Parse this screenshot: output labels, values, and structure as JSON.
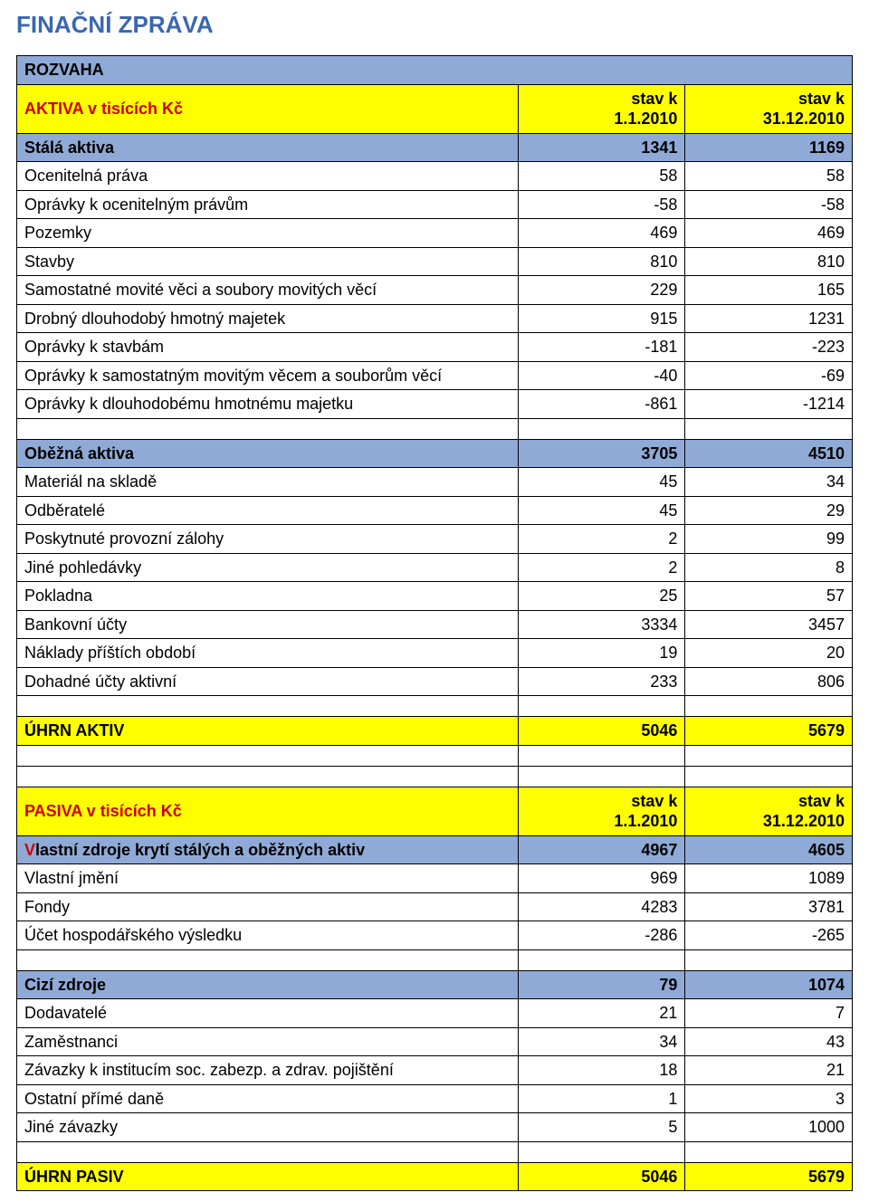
{
  "title": "FINAČNÍ ZPRÁVA",
  "colors": {
    "title": "#3a66b0",
    "header_blue": "#8faad6",
    "highlight_yellow": "#ffff00",
    "accent_red": "#cc0000",
    "border": "#000000",
    "background": "#ffffff"
  },
  "table": {
    "section_title": "ROZVAHA",
    "col1_header_line1": "stav k",
    "col1_header_line2": "1.1.2010",
    "col2_header_line1": "stav k",
    "col2_header_line2": "31.12.2010",
    "aktiva": {
      "header_label": "AKTIVA v tisících Kč",
      "stala": {
        "label": "Stálá aktiva",
        "v1": "1341",
        "v2": "1169"
      },
      "rows1": [
        {
          "label": "Ocenitelná práva",
          "v1": "58",
          "v2": "58"
        },
        {
          "label": "Oprávky k ocenitelným právům",
          "v1": "-58",
          "v2": "-58"
        },
        {
          "label": "Pozemky",
          "v1": "469",
          "v2": "469"
        },
        {
          "label": "Stavby",
          "v1": "810",
          "v2": "810"
        },
        {
          "label": "Samostatné movité věci a soubory movitých věcí",
          "v1": "229",
          "v2": "165"
        },
        {
          "label": "Drobný dlouhodobý hmotný majetek",
          "v1": "915",
          "v2": "1231"
        },
        {
          "label": "Oprávky k stavbám",
          "v1": "-181",
          "v2": "-223"
        },
        {
          "label": "Oprávky k samostatným movitým věcem a souborům věcí",
          "v1": "-40",
          "v2": "-69"
        },
        {
          "label": "Oprávky k dlouhodobému hmotnému majetku",
          "v1": "-861",
          "v2": "-1214"
        }
      ],
      "obezna": {
        "label": "Oběžná aktiva",
        "v1": "3705",
        "v2": "4510"
      },
      "rows2": [
        {
          "label": "Materiál na skladě",
          "v1": "45",
          "v2": "34"
        },
        {
          "label": "Odběratelé",
          "v1": "45",
          "v2": "29"
        },
        {
          "label": "Poskytnuté provozní zálohy",
          "v1": "2",
          "v2": "99"
        },
        {
          "label": "Jiné pohledávky",
          "v1": "2",
          "v2": "8"
        },
        {
          "label": "Pokladna",
          "v1": "25",
          "v2": "57"
        },
        {
          "label": "Bankovní účty",
          "v1": "3334",
          "v2": "3457"
        },
        {
          "label": "Náklady příštích období",
          "v1": "19",
          "v2": "20"
        },
        {
          "label": "Dohadné účty aktivní",
          "v1": "233",
          "v2": "806"
        }
      ],
      "total": {
        "label": "ÚHRN AKTIV",
        "v1": "5046",
        "v2": "5679"
      }
    },
    "pasiva": {
      "header_label": "PASIVA v tisících Kč",
      "vlastni": {
        "label_rest": "lastní zdroje krytí stálých a oběžných aktiv",
        "v1": "4967",
        "v2": "4605"
      },
      "rows1": [
        {
          "label": "Vlastní jmění",
          "v1": "969",
          "v2": "1089"
        },
        {
          "label": "Fondy",
          "v1": "4283",
          "v2": "3781"
        },
        {
          "label": "Účet hospodářského výsledku",
          "v1": "-286",
          "v2": "-265"
        }
      ],
      "cizi": {
        "label": "Cizí zdroje",
        "v1": "79",
        "v2": "1074"
      },
      "rows2": [
        {
          "label": "Dodavatelé",
          "v1": "21",
          "v2": "7"
        },
        {
          "label": "Zaměstnanci",
          "v1": "34",
          "v2": "43"
        },
        {
          "label": "Závazky k institucím soc. zabezp. a zdrav. pojištění",
          "v1": "18",
          "v2": "21"
        },
        {
          "label": "Ostatní přímé daně",
          "v1": "1",
          "v2": "3"
        },
        {
          "label": "Jiné závazky",
          "v1": "5",
          "v2": "1000"
        }
      ],
      "total": {
        "label": "ÚHRN PASIV",
        "v1": "5046",
        "v2": "5679"
      }
    }
  }
}
